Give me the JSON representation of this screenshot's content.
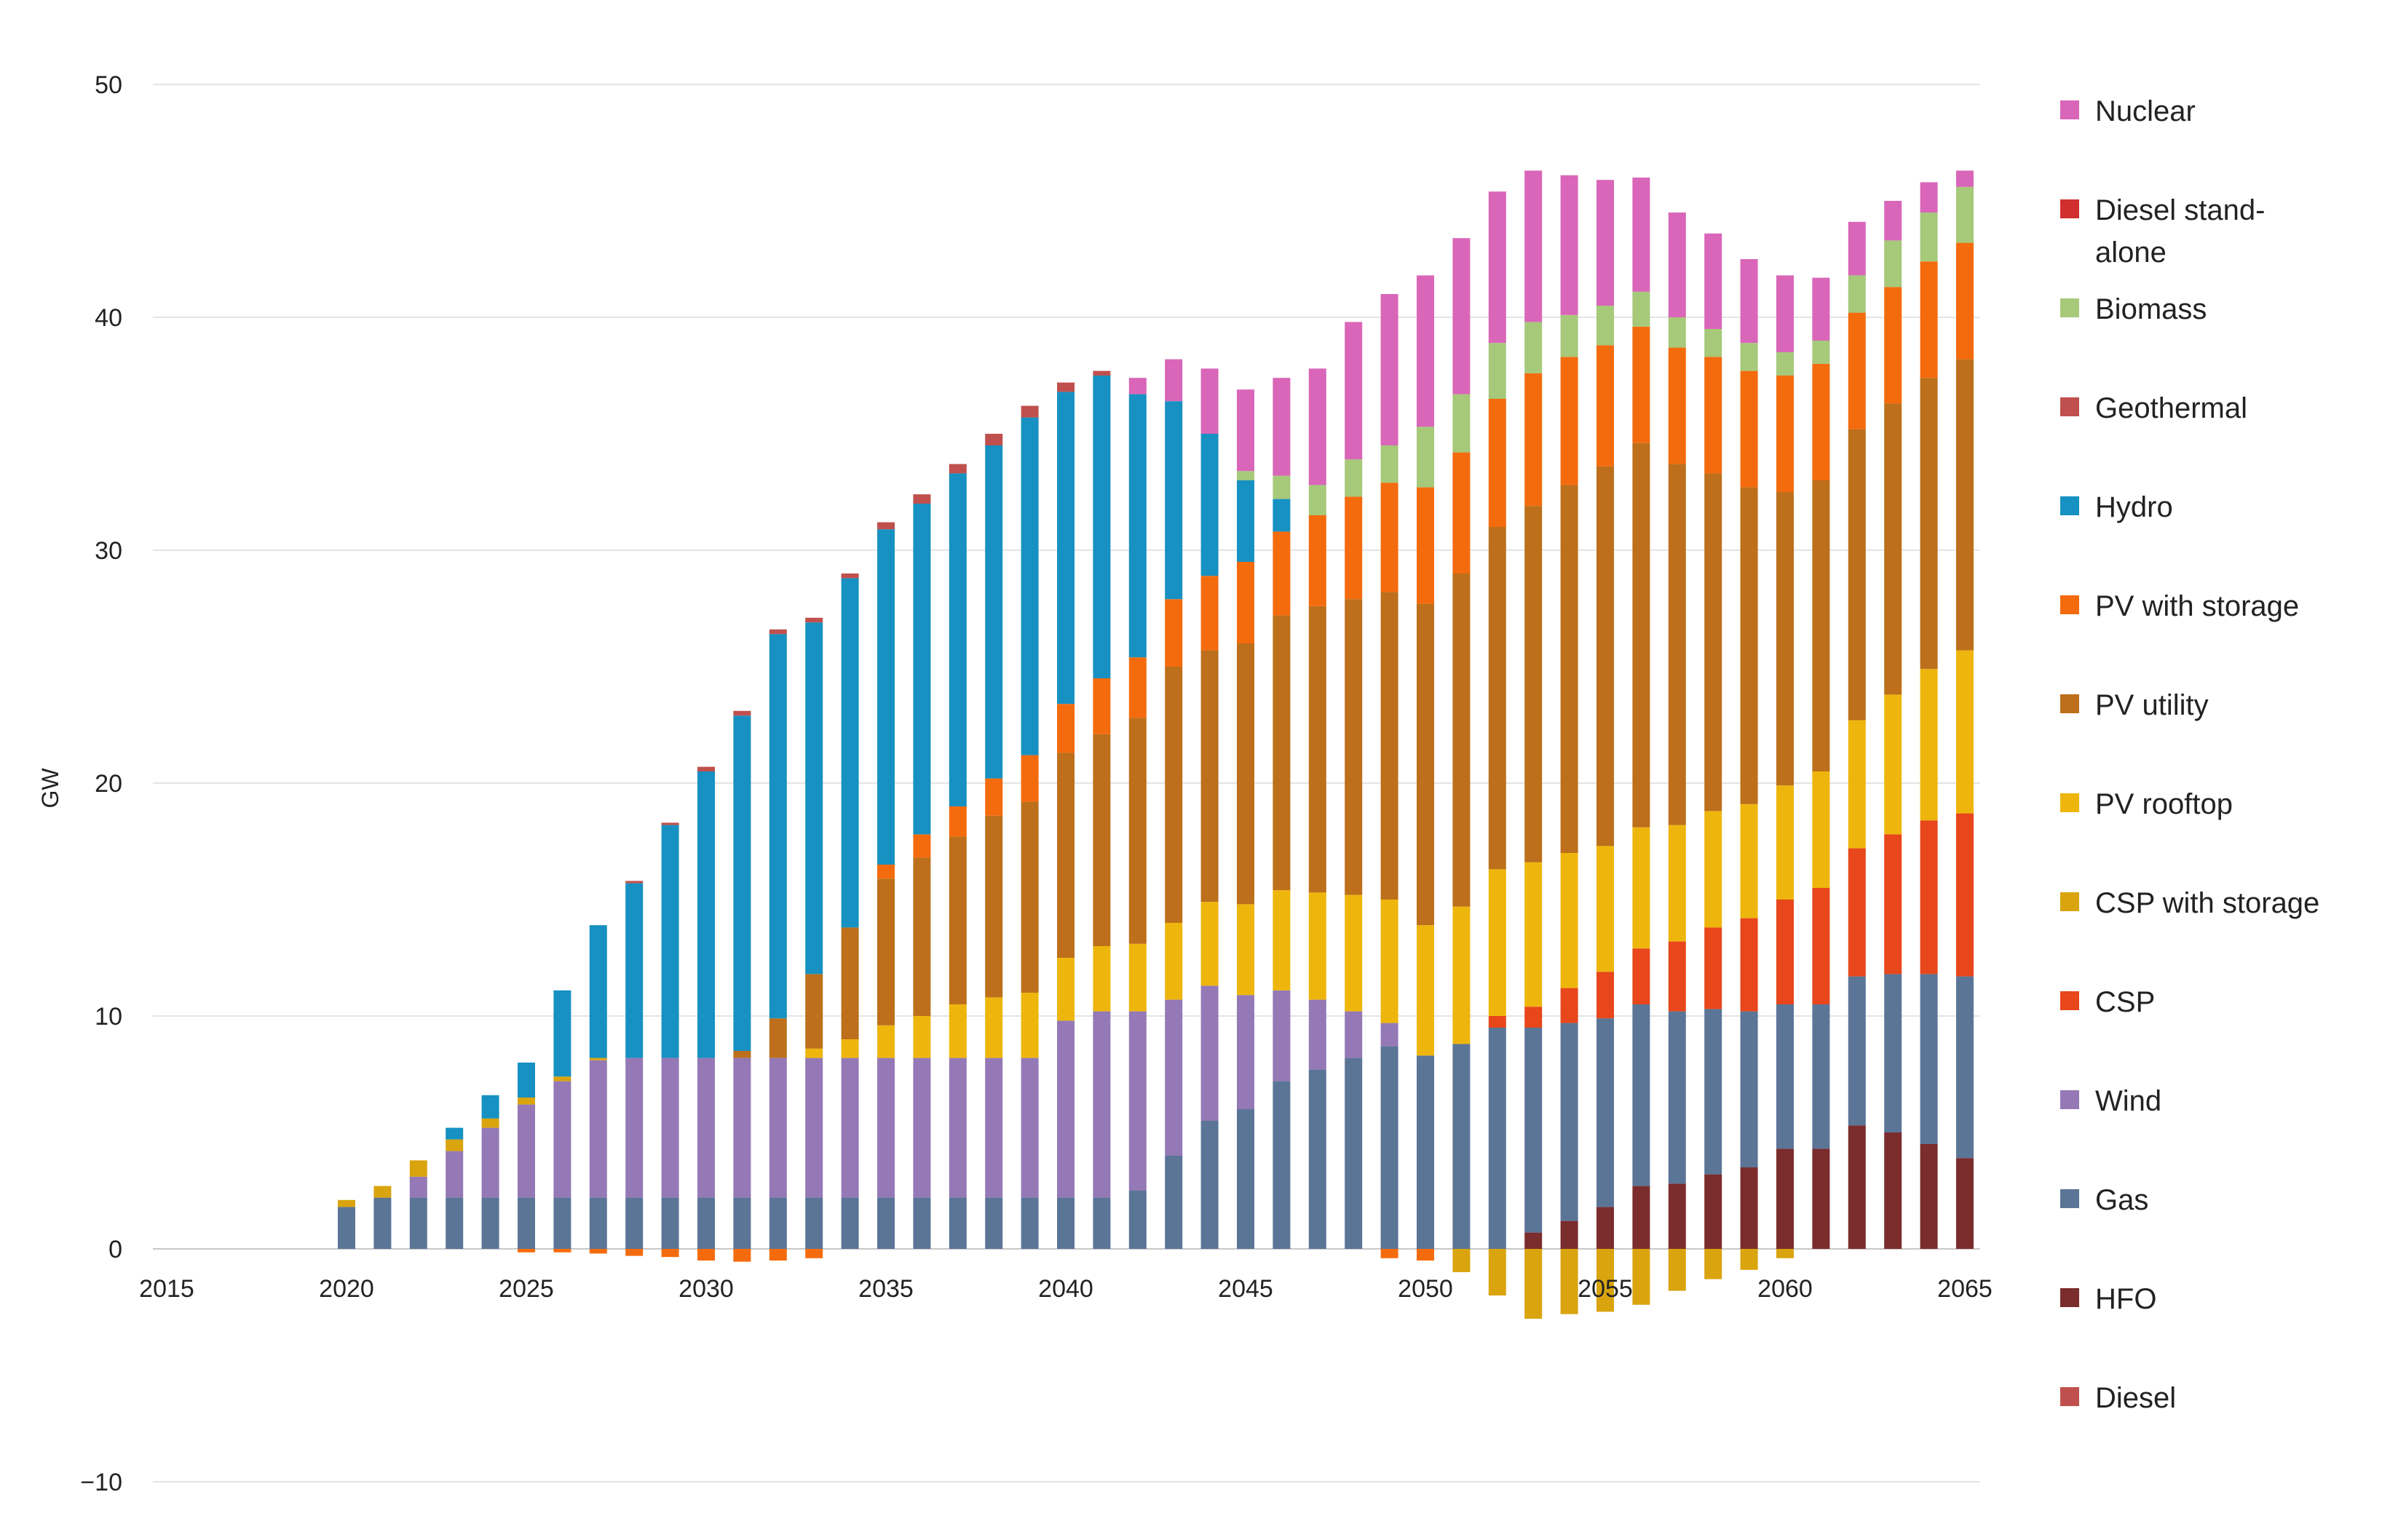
{
  "chart_data": {
    "type": "bar",
    "stacked": true,
    "title": "",
    "xlabel": "",
    "ylabel": "GW",
    "ylim": [
      -10,
      50
    ],
    "yticks": [
      "−10",
      "0",
      "10",
      "20",
      "30",
      "40",
      "50"
    ],
    "ytick_values": [
      -10,
      0,
      10,
      20,
      30,
      40,
      50
    ],
    "xlim": [
      2015,
      2065
    ],
    "xticks": [
      "2015",
      "2020",
      "2025",
      "2030",
      "2035",
      "2040",
      "2045",
      "2050",
      "2055",
      "2060",
      "2065"
    ],
    "xtick_values": [
      2015,
      2020,
      2025,
      2030,
      2035,
      2040,
      2045,
      2050,
      2055,
      2060,
      2065
    ],
    "grid": true,
    "legend_position": "right",
    "categories": [
      2020,
      2021,
      2022,
      2023,
      2024,
      2025,
      2026,
      2027,
      2028,
      2029,
      2030,
      2031,
      2032,
      2033,
      2034,
      2035,
      2036,
      2037,
      2038,
      2039,
      2040,
      2041,
      2042,
      2043,
      2044,
      2045,
      2046,
      2047,
      2048,
      2049,
      2050,
      2051,
      2052,
      2053,
      2054,
      2055,
      2056,
      2057,
      2058,
      2059,
      2060,
      2061,
      2062,
      2063,
      2064,
      2065
    ],
    "series": [
      {
        "name": "Diesel",
        "color": "#C0504D",
        "values": [
          0,
          0,
          0,
          0,
          0,
          0,
          0,
          0,
          0,
          0,
          0,
          0,
          0,
          0,
          0,
          0,
          0,
          0,
          0,
          0,
          0,
          0,
          0,
          0,
          0,
          0,
          0,
          0,
          0,
          0,
          0,
          0,
          0,
          0,
          0,
          0,
          0,
          0,
          0,
          0,
          0,
          0,
          0,
          0,
          0,
          0
        ]
      },
      {
        "name": "HFO",
        "color": "#7B2C2C",
        "values": [
          0,
          0,
          0,
          0,
          0,
          0,
          0,
          0,
          0,
          0,
          0,
          0,
          0,
          0,
          0,
          0,
          0,
          0,
          0,
          0,
          0,
          0,
          0,
          0,
          0,
          0,
          0,
          0,
          0,
          0,
          0,
          0,
          0,
          0.7,
          1.2,
          1.8,
          2.7,
          2.8,
          3.2,
          3.5,
          4.3,
          4.3,
          5.3,
          5,
          4.5,
          3.9
        ]
      },
      {
        "name": "Gas",
        "color": "#5B7597",
        "values": [
          1.8,
          2.2,
          2.2,
          2.2,
          2.2,
          2.2,
          2.2,
          2.2,
          2.2,
          2.2,
          2.2,
          2.2,
          2.2,
          2.2,
          2.2,
          2.2,
          2.2,
          2.2,
          2.2,
          2.2,
          2.2,
          2.2,
          2.5,
          4,
          5.5,
          6,
          7.2,
          7.7,
          8.2,
          8.7,
          8.3,
          8.8,
          9.5,
          8.8,
          8.5,
          8.1,
          7.8,
          7.4,
          7.1,
          6.7,
          6.2,
          6.2,
          6.4,
          6.8,
          7.3,
          7.8
        ]
      },
      {
        "name": "Wind",
        "color": "#9479B6",
        "values": [
          0,
          0,
          0.9,
          2,
          3,
          4,
          5,
          5.9,
          6,
          6,
          6,
          6,
          6,
          6,
          6,
          6,
          6,
          6,
          6,
          6,
          7.6,
          8,
          7.7,
          6.7,
          5.8,
          4.9,
          3.9,
          3,
          2,
          1,
          0,
          0,
          0,
          0,
          0,
          0,
          0,
          0,
          0,
          0,
          0,
          0,
          0,
          0,
          0,
          0
        ]
      },
      {
        "name": "CSP",
        "color": "#E8461B",
        "values": [
          0,
          0,
          0,
          0,
          0,
          0,
          0,
          0,
          0,
          0,
          0,
          0,
          0,
          0,
          0,
          0,
          0,
          0,
          0,
          0,
          0,
          0,
          0,
          0,
          0,
          0,
          0,
          0,
          0,
          0,
          0,
          0,
          0.5,
          0.9,
          1.5,
          2,
          2.4,
          3,
          3.5,
          4,
          4.5,
          5,
          5.5,
          6,
          6.6,
          7
        ]
      },
      {
        "name": "CSP with storage",
        "color": "#D9A40E",
        "values": [
          0.3,
          0.5,
          0.7,
          0.5,
          0.4,
          0.3,
          0.2,
          0.1,
          0,
          0,
          0,
          0,
          0,
          0,
          0,
          0,
          0,
          0,
          0,
          0,
          0,
          0,
          0,
          0,
          0,
          0,
          0,
          0,
          0,
          0,
          0,
          0,
          0,
          0,
          0,
          0,
          0,
          0,
          0,
          0,
          0,
          0,
          0,
          0,
          0,
          0
        ]
      },
      {
        "name": "PV rooftop",
        "color": "#EEB60C",
        "values": [
          0,
          0,
          0,
          0,
          0,
          0,
          0,
          0,
          0,
          0,
          0,
          0,
          0,
          0.4,
          0.8,
          1.4,
          1.8,
          2.3,
          2.6,
          2.8,
          2.7,
          2.8,
          2.9,
          3.3,
          3.6,
          3.9,
          4.3,
          4.6,
          5,
          5.3,
          5.6,
          5.9,
          6.3,
          6.2,
          5.8,
          5.4,
          5.2,
          5,
          5,
          4.9,
          4.9,
          5,
          5.5,
          6,
          6.5,
          7
        ]
      },
      {
        "name": "PV utility",
        "color": "#BD6F1B",
        "values": [
          0,
          0,
          0,
          0,
          0,
          0,
          0,
          0,
          0,
          0,
          0,
          0.3,
          1.7,
          3.2,
          4.8,
          6.3,
          6.8,
          7.2,
          7.8,
          8.2,
          8.8,
          9.1,
          9.7,
          11,
          10.8,
          11.2,
          11.8,
          12.3,
          12.7,
          13.2,
          13.8,
          14.3,
          14.7,
          15.3,
          15.8,
          16.3,
          16.5,
          15.5,
          14.5,
          13.6,
          12.6,
          12.5,
          12.5,
          12.5,
          12.5,
          12.5
        ]
      },
      {
        "name": "PV with storage",
        "color": "#F46B0D",
        "values": [
          0,
          0,
          0,
          0,
          0,
          0,
          0,
          0,
          0,
          0,
          0,
          0,
          0,
          0,
          0,
          0.6,
          1,
          1.3,
          1.6,
          2,
          2.1,
          2.4,
          2.6,
          2.9,
          3.2,
          3.5,
          3.6,
          3.9,
          4.4,
          4.7,
          5,
          5.2,
          5.5,
          5.7,
          5.5,
          5.2,
          5,
          5,
          5,
          5,
          5,
          5,
          5,
          5,
          5,
          5
        ]
      },
      {
        "name": "Hydro",
        "color": "#1791C2",
        "values": [
          0,
          0,
          0,
          0.5,
          1,
          1.5,
          3.7,
          5.7,
          7.5,
          10,
          12.3,
          14.4,
          16.5,
          15.1,
          15,
          14.4,
          14.2,
          14.3,
          14.3,
          14.5,
          13.4,
          13,
          11.3,
          8.5,
          6.1,
          3.5,
          1.4,
          0,
          0,
          0,
          0,
          0,
          0,
          0,
          0,
          0,
          0,
          0,
          0,
          0,
          0,
          0,
          0,
          0,
          0,
          0
        ]
      },
      {
        "name": "Geothermal",
        "color": "#C0504D",
        "values": [
          0,
          0,
          0,
          0,
          0,
          0,
          0,
          0,
          0.1,
          0.1,
          0.2,
          0.2,
          0.2,
          0.2,
          0.2,
          0.3,
          0.4,
          0.4,
          0.5,
          0.5,
          0.4,
          0.2,
          0,
          0,
          0,
          0,
          0,
          0,
          0,
          0,
          0,
          0,
          0,
          0,
          0,
          0,
          0,
          0,
          0,
          0,
          0,
          0,
          0,
          0,
          0,
          0
        ]
      },
      {
        "name": "Biomass",
        "color": "#A6C97A",
        "values": [
          0,
          0,
          0,
          0,
          0,
          0,
          0,
          0,
          0,
          0,
          0,
          0,
          0,
          0,
          0,
          0,
          0,
          0,
          0,
          0,
          0,
          0,
          0,
          0,
          0,
          0.4,
          1,
          1.3,
          1.6,
          1.6,
          2.6,
          2.5,
          2.4,
          2.2,
          1.8,
          1.7,
          1.5,
          1.3,
          1.2,
          1.2,
          1,
          1,
          1.6,
          2,
          2.1,
          2.4
        ]
      },
      {
        "name": "Diesel stand-alone",
        "color": "#D12E2E",
        "values": [
          0,
          0,
          0,
          0,
          0,
          0,
          0,
          0,
          0,
          0,
          0,
          0,
          0,
          0,
          0,
          0,
          0,
          0,
          0,
          0,
          0,
          0,
          0,
          0,
          0,
          0,
          0,
          0,
          0,
          0,
          0,
          0,
          0,
          0,
          0,
          0,
          0,
          0,
          0,
          0,
          0,
          0,
          0,
          0,
          0,
          0
        ]
      },
      {
        "name": "Nuclear",
        "color": "#D966B8",
        "values": [
          0,
          0,
          0,
          0,
          0,
          0,
          0,
          0,
          0,
          0,
          0,
          0,
          0,
          0,
          0,
          0,
          0,
          0,
          0,
          0,
          0,
          0,
          0.7,
          1.8,
          2.8,
          3.5,
          4.2,
          5,
          5.9,
          6.5,
          6.5,
          6.7,
          6.5,
          6.5,
          6,
          5.4,
          4.9,
          4.5,
          4.1,
          3.6,
          3.3,
          2.7,
          2.3,
          1.7,
          1.3,
          0.7
        ]
      },
      {
        "name": "CSP with storage (negative)",
        "color": "#D9A40E",
        "values": [
          0,
          0,
          0,
          0,
          0,
          0,
          0,
          0,
          0,
          0,
          0,
          0,
          0,
          0,
          0,
          0,
          0,
          0,
          0,
          0,
          0,
          0,
          0,
          0,
          0,
          0,
          0,
          0,
          0,
          0,
          0,
          -1,
          -2,
          -3,
          -2.8,
          -2.7,
          -2.4,
          -1.8,
          -1.3,
          -0.9,
          -0.4,
          0,
          0,
          0,
          0,
          0
        ]
      },
      {
        "name": "PV with storage (negative)",
        "color": "#F46B0D",
        "values": [
          0,
          0,
          0,
          0,
          0,
          -0.15,
          -0.15,
          -0.2,
          -0.3,
          -0.35,
          -0.5,
          -0.55,
          -0.5,
          -0.4,
          0,
          0,
          0,
          0,
          0,
          0,
          0,
          0,
          0,
          0,
          0,
          0,
          0,
          0,
          0,
          -0.4,
          -0.5,
          0,
          0,
          0,
          0,
          0,
          0,
          0,
          0,
          0,
          0,
          0,
          0,
          0,
          0,
          0
        ]
      }
    ]
  },
  "legend": {
    "items": [
      {
        "label": "Nuclear",
        "color": "#D966B8"
      },
      {
        "label": "Diesel stand-alone",
        "color": "#D12E2E"
      },
      {
        "label": "Biomass",
        "color": "#A6C97A"
      },
      {
        "label": "Geothermal",
        "color": "#C0504D"
      },
      {
        "label": "Hydro",
        "color": "#1791C2"
      },
      {
        "label": "PV with storage",
        "color": "#F46B0D"
      },
      {
        "label": "PV utility",
        "color": "#BD6F1B"
      },
      {
        "label": "PV rooftop",
        "color": "#EEB60C"
      },
      {
        "label": "CSP with storage",
        "color": "#D9A40E"
      },
      {
        "label": "CSP",
        "color": "#E8461B"
      },
      {
        "label": "Wind",
        "color": "#9479B6"
      },
      {
        "label": "Gas",
        "color": "#5B7597"
      },
      {
        "label": "HFO",
        "color": "#7B2C2C"
      },
      {
        "label": "Diesel",
        "color": "#C0504D"
      }
    ]
  }
}
